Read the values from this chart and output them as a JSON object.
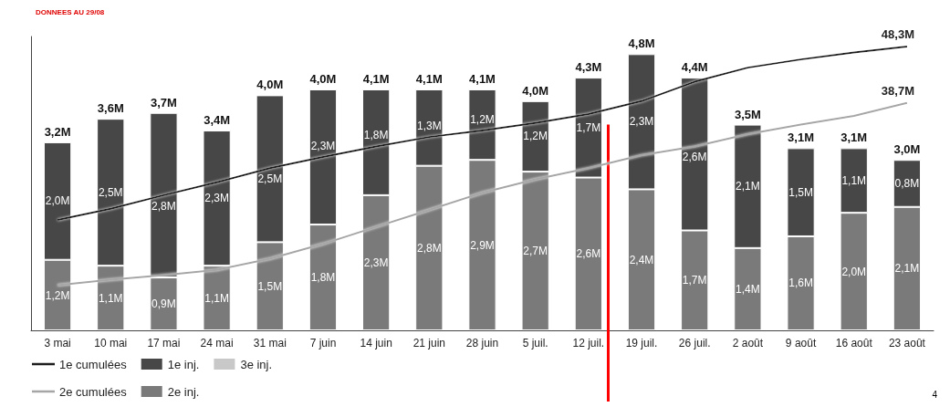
{
  "chart_data": {
    "type": "bar",
    "title": "DONNEES AU 29/08",
    "stacked": true,
    "categories": [
      "3 mai",
      "10 mai",
      "17 mai",
      "24 mai",
      "31 mai",
      "7 juin",
      "14 juin",
      "21 juin",
      "28 juin",
      "5 juil.",
      "12 juil.",
      "19 juil.",
      "26 juil.",
      "2 août",
      "9 août",
      "16 août",
      "23 août"
    ],
    "ylim": [
      0,
      5
    ],
    "y2lim": [
      0,
      50
    ],
    "tick_labels": "x",
    "grid": false,
    "legend": "bottom left",
    "marker": "none",
    "series": [
      {
        "name": "2e inj.",
        "color": "#7a7a7a",
        "values": [
          1.2,
          1.1,
          0.9,
          1.1,
          1.5,
          1.8,
          2.3,
          2.8,
          2.9,
          2.7,
          2.6,
          2.4,
          1.7,
          1.4,
          1.6,
          2.0,
          2.1
        ],
        "value_labels": [
          "1,2M",
          "1,1M",
          "0,9M",
          "1,1M",
          "1,5M",
          "1,8M",
          "2,3M",
          "2,8M",
          "2,9M",
          "2,7M",
          "2,6M",
          "2,4M",
          "1,7M",
          "1,4M",
          "1,6M",
          "2,0M",
          "2,1M"
        ]
      },
      {
        "name": "1e inj.",
        "color": "#474747",
        "values": [
          2.0,
          2.5,
          2.8,
          2.3,
          2.5,
          2.3,
          1.8,
          1.3,
          1.2,
          1.2,
          1.7,
          2.3,
          2.6,
          2.1,
          1.5,
          1.1,
          0.8
        ],
        "value_labels": [
          "2,0M",
          "2,5M",
          "2,8M",
          "2,3M",
          "2,5M",
          "2,3M",
          "1,8M",
          "1,3M",
          "1,2M",
          "1,2M",
          "1,7M",
          "2,3M",
          "2,6M",
          "2,1M",
          "1,5M",
          "1,1M",
          "0,8M"
        ]
      },
      {
        "name": "3e inj.",
        "color": "#c8c8c8",
        "values": [
          null,
          null,
          null,
          null,
          null,
          null,
          null,
          null,
          null,
          null,
          null,
          null,
          null,
          null,
          null,
          null,
          null
        ]
      },
      {
        "name": "1e cumulées",
        "type": "line",
        "axis": "y2",
        "color": "#1e1e1e",
        "values": [
          18.8,
          20.7,
          23.0,
          25.2,
          27.6,
          29.5,
          31.3,
          32.9,
          34.0,
          35.3,
          36.8,
          39.0,
          42.3,
          44.7,
          46.1,
          47.3,
          48.3
        ],
        "value_labels": [
          null,
          null,
          null,
          null,
          null,
          null,
          null,
          null,
          null,
          null,
          null,
          null,
          null,
          null,
          null,
          null,
          "48,3M"
        ]
      },
      {
        "name": "2e cumulées",
        "type": "line",
        "axis": "y2",
        "color": "#a6a6a6",
        "values": [
          7.7,
          8.6,
          9.4,
          10.3,
          12.2,
          14.7,
          17.6,
          20.5,
          23.4,
          25.7,
          27.6,
          29.8,
          31.3,
          33.4,
          35.0,
          36.5,
          38.7
        ],
        "value_labels": [
          null,
          null,
          null,
          null,
          null,
          null,
          null,
          null,
          null,
          null,
          null,
          null,
          null,
          null,
          null,
          null,
          "38,7M"
        ]
      }
    ],
    "totals": [
      "3,2M",
      "3,6M",
      "3,7M",
      "3,4M",
      "4,0M",
      "4,0M",
      "4,1M",
      "4,1M",
      "4,1M",
      "4,0M",
      "4,3M",
      "4,8M",
      "4,4M",
      "3,5M",
      "3,1M",
      "3,1M",
      "3,0M"
    ],
    "ref_lines": [
      {
        "axis": "x",
        "value": "12 juil.",
        "color": "#ff0000"
      }
    ],
    "annotations": [
      "4"
    ]
  }
}
